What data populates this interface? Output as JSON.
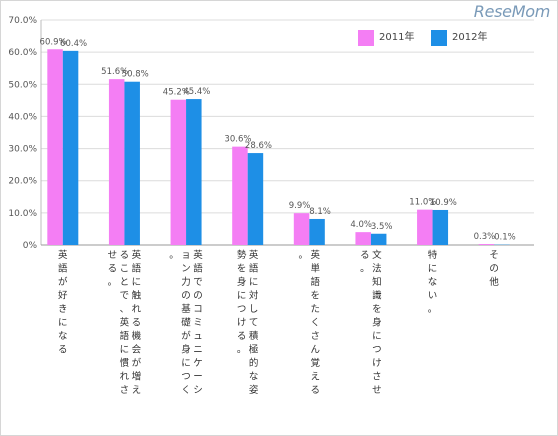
{
  "watermark": "ReseMom",
  "chart_data": {
    "type": "bar",
    "categories": [
      "英語が好きになる",
      "英語に触れる機会が増えることで、英語に慣れさせる。",
      "英語でのコミュニケーション力の基礎が身につく。",
      "英語に対して積極的な姿勢を身につける。",
      "英単語をたくさん覚える。",
      "文法知識を身につけさせる。",
      "特にない。",
      "その他"
    ],
    "series": [
      {
        "name": "2011年",
        "values": [
          60.9,
          51.6,
          45.2,
          30.6,
          9.9,
          4.0,
          11.0,
          0.3
        ],
        "color": "#f47ef4"
      },
      {
        "name": "2012年",
        "values": [
          60.4,
          50.8,
          45.4,
          28.6,
          8.1,
          3.5,
          10.9,
          0.1
        ],
        "color": "#1e8fe6"
      }
    ],
    "y_ticks": [
      "0%",
      "10.0%",
      "20.0%",
      "30.0%",
      "40.0%",
      "50.0%",
      "60.0%",
      "70.0%"
    ],
    "ylim": [
      0,
      70
    ],
    "grid": true,
    "legend_position": "top-right",
    "data_label_format": "percent_1dp"
  }
}
